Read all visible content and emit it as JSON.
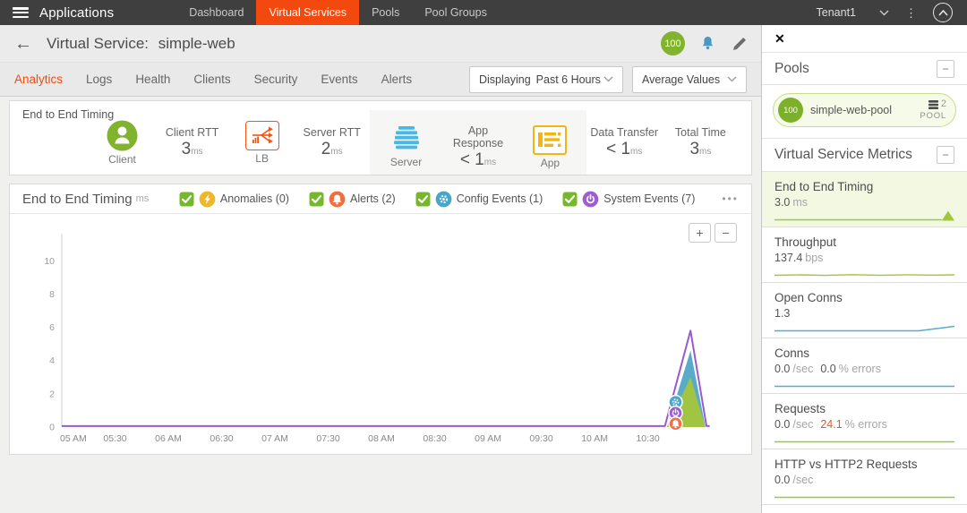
{
  "nav": {
    "app_title": "Applications",
    "items": [
      {
        "label": "Dashboard",
        "active": false
      },
      {
        "label": "Virtual Services",
        "active": true
      },
      {
        "label": "Pools",
        "active": false
      },
      {
        "label": "Pool Groups",
        "active": false
      }
    ],
    "tenant": "Tenant1"
  },
  "header": {
    "title_prefix": "Virtual Service:",
    "title_name": "simple-web",
    "health_score": "100"
  },
  "tabs": [
    {
      "label": "Analytics",
      "active": true
    },
    {
      "label": "Logs"
    },
    {
      "label": "Health"
    },
    {
      "label": "Clients"
    },
    {
      "label": "Security"
    },
    {
      "label": "Events"
    },
    {
      "label": "Alerts"
    }
  ],
  "filters": {
    "displaying_prefix": "Displaying",
    "time_range": "Past 6 Hours",
    "value_mode": "Average Values"
  },
  "e2e_panel": {
    "title": "End to End Timing",
    "client_label": "Client",
    "lb_label": "LB",
    "server_label": "Server",
    "app_label": "App",
    "metrics": [
      {
        "label": "Client RTT",
        "value": "3",
        "unit": "ms"
      },
      {
        "label": "Server RTT",
        "value": "2",
        "unit": "ms"
      },
      {
        "label": "App Response",
        "value": "< 1",
        "unit": "ms"
      },
      {
        "label": "Data Transfer",
        "value": "< 1",
        "unit": "ms"
      },
      {
        "label": "Total Time",
        "value": "3",
        "unit": "ms"
      }
    ]
  },
  "chart_panel": {
    "title": "End to End Timing",
    "title_unit": "ms",
    "checkbox_color": "#76b82a",
    "toggles": [
      {
        "label": "Anomalies (0)",
        "icon": "anomaly-lightning",
        "color": "#efb829",
        "checked": true
      },
      {
        "label": "Alerts (2)",
        "icon": "alert-bell",
        "color": "#ed6f44",
        "checked": true
      },
      {
        "label": "Config Events (1)",
        "icon": "config-gear",
        "color": "#4aa6c9",
        "checked": true
      },
      {
        "label": "System Events (7)",
        "icon": "system-power",
        "color": "#9d5fd0",
        "checked": true
      }
    ],
    "zoom_in": "+",
    "zoom_out": "−",
    "more": "•••"
  },
  "chart_data": {
    "type": "area",
    "title": "End to End Timing",
    "ylabel": "ms",
    "ylim": [
      0,
      11.2
    ],
    "yticks": [
      0,
      2,
      4,
      6,
      8,
      10
    ],
    "x_range_hours": [
      5.0,
      11.1
    ],
    "xticks": [
      {
        "h": 5.0,
        "label": "05 AM"
      },
      {
        "h": 5.5,
        "label": "05:30"
      },
      {
        "h": 6.0,
        "label": "06 AM"
      },
      {
        "h": 6.5,
        "label": "06:30"
      },
      {
        "h": 7.0,
        "label": "07 AM"
      },
      {
        "h": 7.5,
        "label": "07:30"
      },
      {
        "h": 8.0,
        "label": "08 AM"
      },
      {
        "h": 8.5,
        "label": "08:30"
      },
      {
        "h": 9.0,
        "label": "09 AM"
      },
      {
        "h": 9.5,
        "label": "09:30"
      },
      {
        "h": 10.0,
        "label": "10 AM"
      },
      {
        "h": 10.5,
        "label": "10:30"
      }
    ],
    "grid": false,
    "legend": "none",
    "series": [
      {
        "name": "server-rtt-component",
        "type": "area",
        "color": "#4aa5c4",
        "opacity": 0.92,
        "points": [
          [
            10.68,
            0
          ],
          [
            10.9,
            4.6
          ],
          [
            11.04,
            0
          ]
        ]
      },
      {
        "name": "client-rtt-component",
        "type": "area",
        "color": "#a6c53c",
        "opacity": 0.95,
        "points": [
          [
            10.68,
            0
          ],
          [
            10.9,
            3.0
          ],
          [
            11.04,
            0
          ]
        ]
      },
      {
        "name": "end-to-end-total",
        "type": "line",
        "color": "#9b59ce",
        "width": 2,
        "points": [
          [
            5.0,
            0.06
          ],
          [
            10.66,
            0.06
          ],
          [
            10.9,
            5.8
          ],
          [
            11.05,
            0.06
          ],
          [
            11.08,
            0.06
          ]
        ]
      }
    ],
    "events": [
      {
        "name": "config-event",
        "icon": "config-gear",
        "color": "#4aa6c9",
        "x": 10.76,
        "y": 1.5
      },
      {
        "name": "system-event",
        "icon": "system-power",
        "color": "#9d5fd0",
        "x": 10.76,
        "y": 0.85
      },
      {
        "name": "alert-event",
        "icon": "alert-bell",
        "color": "#ed6f44",
        "x": 10.76,
        "y": 0.2
      }
    ]
  },
  "sidebar": {
    "pools": {
      "title": "Pools",
      "collapse": "−",
      "pool": {
        "health": "100",
        "name": "simple-web-pool",
        "server_count": "2",
        "type": "POOL"
      }
    },
    "metrics_section": {
      "title": "Virtual Service Metrics",
      "collapse": "−"
    },
    "metrics": [
      {
        "name": "End to End Timing",
        "value": "3.0",
        "unit": "ms",
        "selected": true,
        "spark": {
          "color": "#9ec73b",
          "shape": "spike-end"
        }
      },
      {
        "name": "Throughput",
        "value": "137.4",
        "unit": "bps",
        "spark": {
          "color": "#9ec73b",
          "shape": "wavy"
        }
      },
      {
        "name": "Open Conns",
        "value": "1.3",
        "unit": "",
        "spark": {
          "color": "#54aecd",
          "shape": "rise-end"
        }
      },
      {
        "name": "Conns",
        "value": "0.0",
        "unit": "/sec",
        "error_value": "0.0",
        "error_unit": "% errors",
        "error_highlight": false,
        "spark": {
          "color": "#54aecd",
          "shape": "flat"
        }
      },
      {
        "name": "Requests",
        "value": "0.0",
        "unit": "/sec",
        "error_value": "24.1",
        "error_unit": "% errors",
        "error_highlight": true,
        "spark": {
          "color": "#9ec73b",
          "shape": "flat"
        }
      },
      {
        "name": "HTTP vs HTTP2 Requests",
        "value": "0.0",
        "unit": "/sec",
        "spark": {
          "color": "#9ec73b",
          "shape": "flat"
        }
      }
    ]
  },
  "colors": {
    "nav_bg": "#3f3f3f",
    "accent_orange": "#f4490e",
    "health_green": "#82b32e",
    "bell_blue": "#4a98c0",
    "server_blue": "#47b8e8",
    "app_gold": "#f3b512",
    "error_orange": "#e05a26"
  }
}
